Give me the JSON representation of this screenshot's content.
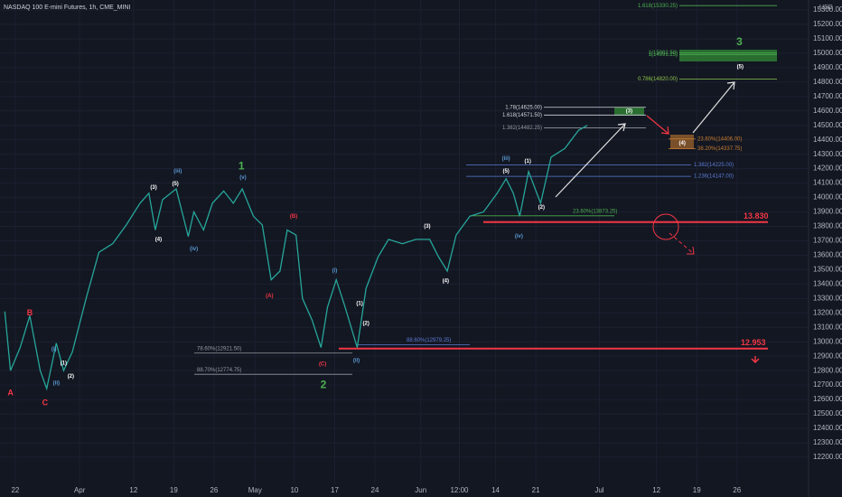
{
  "chart_data": {
    "type": "line",
    "title": "NASDAQ 100 E-mini Futures, 1h, CME_MINI",
    "y_unit": "USD",
    "x": [
      -1.3,
      -0.6,
      0.6,
      1.8,
      3.1,
      3.9,
      5.1,
      6.0,
      7.1,
      8.8,
      10.4,
      12.1,
      13.8,
      15.5,
      16.6,
      17.4,
      18.3,
      20.0,
      21.5,
      22.2,
      23.4,
      24.5,
      25.9,
      27.1,
      28.2,
      29.6,
      30.7,
      31.8,
      32.9,
      33.8,
      34.9,
      35.7,
      36.9,
      38.0,
      38.8,
      39.9,
      41.0,
      42.5,
      43.6,
      45.1,
      46.4,
      48.1,
      49.8,
      51.5,
      52.6,
      53.7,
      54.8,
      56.5,
      58.2,
      59.9,
      61.0,
      61.9,
      62.7,
      63.8,
      65.3,
      66.6,
      68.3,
      70.0,
      71.1
    ],
    "series": [
      {
        "name": "NQ1!",
        "color": "#26a69a",
        "values": [
          13210,
          12800,
          12960,
          13180,
          12800,
          12675,
          12990,
          12800,
          12930,
          13300,
          13620,
          13680,
          13810,
          13960,
          14030,
          13775,
          13985,
          14060,
          13730,
          13900,
          13775,
          13960,
          14045,
          13960,
          14060,
          13870,
          13810,
          13430,
          13490,
          13775,
          13740,
          13300,
          13150,
          12960,
          13240,
          13430,
          13240,
          12960,
          13370,
          13590,
          13710,
          13680,
          13710,
          13710,
          13590,
          13490,
          13740,
          13870,
          13900,
          14030,
          14130,
          14030,
          13870,
          14180,
          13960,
          14280,
          14340,
          14465,
          14500
        ]
      }
    ],
    "xlim": [
      -1.9,
      98.6
    ],
    "xticks": [
      {
        "value": 0,
        "label": "22"
      },
      {
        "value": 8,
        "label": "Apr"
      },
      {
        "value": 14.7,
        "label": "12"
      },
      {
        "value": 19.7,
        "label": "19"
      },
      {
        "value": 24.7,
        "label": "26"
      },
      {
        "value": 29.8,
        "label": "May"
      },
      {
        "value": 34.7,
        "label": "10"
      },
      {
        "value": 39.7,
        "label": "17"
      },
      {
        "value": 44.7,
        "label": "24"
      },
      {
        "value": 50.4,
        "label": "Jun"
      },
      {
        "value": 55.2,
        "label": "12:00"
      },
      {
        "value": 59.7,
        "label": "14"
      },
      {
        "value": 64.7,
        "label": "21"
      },
      {
        "value": 72.6,
        "label": "Jul"
      },
      {
        "value": 79.7,
        "label": "12"
      },
      {
        "value": 84.7,
        "label": "19"
      },
      {
        "value": 89.7,
        "label": "26"
      }
    ],
    "ylim": [
      11924,
      15369
    ],
    "yticks": [
      {
        "value": 12200,
        "label": "12200.00"
      },
      {
        "value": 12300,
        "label": "12300.00"
      },
      {
        "value": 12400,
        "label": "12400.00"
      },
      {
        "value": 12500,
        "label": "12500.00"
      },
      {
        "value": 12600,
        "label": "12600.00"
      },
      {
        "value": 12700,
        "label": "12700.00"
      },
      {
        "value": 12800,
        "label": "12800.00"
      },
      {
        "value": 12900,
        "label": "12900.00"
      },
      {
        "value": 13000,
        "label": "13000.00"
      },
      {
        "value": 13100,
        "label": "13100.00"
      },
      {
        "value": 13200,
        "label": "13200.00"
      },
      {
        "value": 13300,
        "label": "13300.00"
      },
      {
        "value": 13400,
        "label": "13400.00"
      },
      {
        "value": 13500,
        "label": "13500.00"
      },
      {
        "value": 13600,
        "label": "13600.00"
      },
      {
        "value": 13700,
        "label": "13700.00"
      },
      {
        "value": 13800,
        "label": "13800.00"
      },
      {
        "value": 13900,
        "label": "13900.00"
      },
      {
        "value": 14000,
        "label": "14000.00"
      },
      {
        "value": 14100,
        "label": "14100.00"
      },
      {
        "value": 14200,
        "label": "14200.00"
      },
      {
        "value": 14300,
        "label": "14300.00"
      },
      {
        "value": 14400,
        "label": "14400.00"
      },
      {
        "value": 14500,
        "label": "14500.00"
      },
      {
        "value": 14600,
        "label": "14600.00"
      },
      {
        "value": 14700,
        "label": "14700.00"
      },
      {
        "value": 14800,
        "label": "14800.00"
      },
      {
        "value": 14900,
        "label": "14900.00"
      },
      {
        "value": 15000,
        "label": "15000.00"
      },
      {
        "value": 15100,
        "label": "15100.00"
      },
      {
        "value": 15200,
        "label": "15200.00"
      },
      {
        "value": 15300,
        "label": "15300.00"
      }
    ],
    "grid": true,
    "levels": [
      {
        "label": "1.618(15330.25)",
        "value": 15330.25,
        "color": "#4caf50"
      },
      {
        "label": "1(15002.50)",
        "value": 15002.5,
        "color": "#4caf50"
      },
      {
        "label": "1(14991.25)",
        "value": 14991.25,
        "color": "#4caf50"
      },
      {
        "label": "0.786(14820.00)",
        "value": 14820,
        "color": "#8bc34a"
      },
      {
        "label": "1.78(14625.00)",
        "value": 14625,
        "color": "#d1d4dc"
      },
      {
        "label": "1.618(14571.50)",
        "value": 14571.5,
        "color": "#d1d4dc"
      },
      {
        "label": "1.382(14482.25)",
        "value": 14482.25,
        "color": "#9598a1"
      },
      {
        "label": "23.60%(14406.00)",
        "value": 14406,
        "color": "#c77c30"
      },
      {
        "label": "38.20%(14337.75)",
        "value": 14337.75,
        "color": "#c77c30"
      },
      {
        "label": "1.382(14225.00)",
        "value": 14225,
        "color": "#5b7bd5"
      },
      {
        "label": "1.236(14147.00)",
        "value": 14147,
        "color": "#5b7bd5"
      },
      {
        "label": "23.60%(13873.25)",
        "value": 13873.25,
        "color": "#4caf50"
      },
      {
        "label": "13.830",
        "value": 13830,
        "color": "#f23645"
      },
      {
        "label": "88.60%(12979.25)",
        "value": 12979.25,
        "color": "#5b7bd5"
      },
      {
        "label": "12.953",
        "value": 12953,
        "color": "#f23645"
      },
      {
        "label": "78.60%(12921.50)",
        "value": 12921.5,
        "color": "#9598a1"
      },
      {
        "label": "88.70%(12774.75)",
        "value": 12774.75,
        "color": "#9598a1"
      }
    ],
    "annotations": [
      {
        "text": "A",
        "x": -0.6,
        "y": 12645,
        "color": "#f23645"
      },
      {
        "text": "B",
        "x": 1.8,
        "y": 13197,
        "color": "#f23645"
      },
      {
        "text": "C",
        "x": 3.7,
        "y": 12575,
        "color": "#f23645"
      },
      {
        "text": "(i)",
        "x": 4.8,
        "y": 12950,
        "color": "#5b9bd5"
      },
      {
        "text": "(ii)",
        "x": 5.1,
        "y": 12713,
        "color": "#5b9bd5"
      },
      {
        "text": "(1)",
        "x": 6.0,
        "y": 12850,
        "color": "#ffffff"
      },
      {
        "text": "(2)",
        "x": 6.9,
        "y": 12760,
        "color": "#ffffff"
      },
      {
        "text": "(3)",
        "x": 17.2,
        "y": 14070,
        "color": "#ffffff"
      },
      {
        "text": "(4)",
        "x": 17.8,
        "y": 13710,
        "color": "#ffffff"
      },
      {
        "text": "(5)",
        "x": 19.9,
        "y": 14095,
        "color": "#ffffff"
      },
      {
        "text": "(iii)",
        "x": 20.2,
        "y": 14183,
        "color": "#5b9bd5"
      },
      {
        "text": "(iv)",
        "x": 22.2,
        "y": 13643,
        "color": "#5b9bd5"
      },
      {
        "text": "(v)",
        "x": 28.3,
        "y": 14140,
        "color": "#5b9bd5"
      },
      {
        "text": "1",
        "x": 28.1,
        "y": 14215,
        "color": "#4caf50"
      },
      {
        "text": "(B)",
        "x": 34.6,
        "y": 13870,
        "color": "#f23645"
      },
      {
        "text": "(A)",
        "x": 31.6,
        "y": 13317,
        "color": "#f23645"
      },
      {
        "text": "(C)",
        "x": 38.2,
        "y": 12846,
        "color": "#f23645"
      },
      {
        "text": "2",
        "x": 38.3,
        "y": 12700,
        "color": "#4caf50"
      },
      {
        "text": "(i)",
        "x": 39.7,
        "y": 13492,
        "color": "#5b9bd5"
      },
      {
        "text": "(ii)",
        "x": 42.4,
        "y": 12870,
        "color": "#5b9bd5"
      },
      {
        "text": "(1)",
        "x": 42.8,
        "y": 13266,
        "color": "#ffffff"
      },
      {
        "text": "(2)",
        "x": 43.6,
        "y": 13128,
        "color": "#ffffff"
      },
      {
        "text": "(3)",
        "x": 51.2,
        "y": 13800,
        "color": "#ffffff"
      },
      {
        "text": "(4)",
        "x": 53.5,
        "y": 13423,
        "color": "#ffffff"
      },
      {
        "text": "(iii)",
        "x": 61.0,
        "y": 14271,
        "color": "#5b9bd5"
      },
      {
        "text": "(5)",
        "x": 61.0,
        "y": 14183,
        "color": "#ffffff"
      },
      {
        "text": "(1)",
        "x": 63.7,
        "y": 14252,
        "color": "#ffffff"
      },
      {
        "text": "(2)",
        "x": 65.4,
        "y": 13932,
        "color": "#ffffff"
      },
      {
        "text": "(iv)",
        "x": 62.6,
        "y": 13731,
        "color": "#5b9bd5"
      },
      {
        "text": "3",
        "x": 90.0,
        "y": 15075,
        "color": "#4caf50"
      },
      {
        "text": "(5)",
        "x": 90.1,
        "y": 14905,
        "color": "#ffffff"
      },
      {
        "text": "(3)",
        "x": 76.3,
        "y": 14598,
        "color": "#ffffff"
      },
      {
        "text": "(4)",
        "x": 82.9,
        "y": 14378,
        "color": "#ffffff"
      }
    ]
  }
}
